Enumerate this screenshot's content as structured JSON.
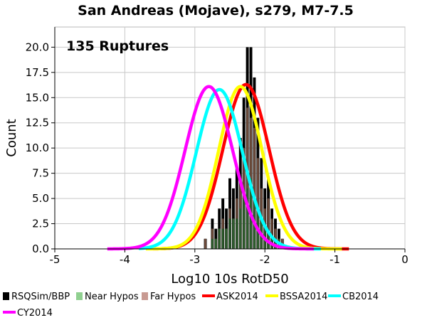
{
  "chart_data": {
    "type": "bar",
    "title": "San Andreas (Mojave), s279, M7-7.5",
    "annotation": "135 Ruptures",
    "xlabel": "Log10 10s RotD50",
    "ylabel": "Count",
    "xlim": [
      -5,
      0
    ],
    "ylim": [
      0,
      22
    ],
    "x_ticks": [
      "-5",
      "-4",
      "-3",
      "-2",
      "-1",
      "0"
    ],
    "y_ticks": [
      "0.0",
      "2.5",
      "5.0",
      "7.5",
      "10.0",
      "12.5",
      "15.0",
      "17.5",
      "20.0"
    ],
    "grid": true,
    "bin_width": 0.05,
    "bins": [
      {
        "x": -2.85,
        "total": 1,
        "near": 0,
        "far": 1
      },
      {
        "x": -2.75,
        "total": 3,
        "near": 1,
        "far": 2
      },
      {
        "x": -2.7,
        "total": 2,
        "near": 1,
        "far": 1
      },
      {
        "x": -2.65,
        "total": 4,
        "near": 2,
        "far": 2
      },
      {
        "x": -2.6,
        "total": 5,
        "near": 2,
        "far": 3
      },
      {
        "x": -2.55,
        "total": 4,
        "near": 2,
        "far": 2
      },
      {
        "x": -2.5,
        "total": 7,
        "near": 3,
        "far": 4
      },
      {
        "x": -2.45,
        "total": 6,
        "near": 3,
        "far": 3
      },
      {
        "x": -2.4,
        "total": 8,
        "near": 3,
        "far": 5
      },
      {
        "x": -2.35,
        "total": 11,
        "near": 4,
        "far": 7
      },
      {
        "x": -2.3,
        "total": 15,
        "near": 5,
        "far": 10
      },
      {
        "x": -2.25,
        "total": 20,
        "near": 6,
        "far": 14
      },
      {
        "x": -2.2,
        "total": 20,
        "near": 7,
        "far": 13
      },
      {
        "x": -2.15,
        "total": 17,
        "near": 5,
        "far": 12
      },
      {
        "x": -2.1,
        "total": 13,
        "near": 4,
        "far": 9
      },
      {
        "x": -2.05,
        "total": 9,
        "near": 3,
        "far": 6
      },
      {
        "x": -2.0,
        "total": 6,
        "near": 2,
        "far": 4
      },
      {
        "x": -1.95,
        "total": 7,
        "near": 2,
        "far": 5
      },
      {
        "x": -1.9,
        "total": 4,
        "near": 1,
        "far": 3
      },
      {
        "x": -1.85,
        "total": 3,
        "near": 1,
        "far": 2
      },
      {
        "x": -1.8,
        "total": 2,
        "near": 1,
        "far": 1
      },
      {
        "x": -1.75,
        "total": 1,
        "near": 0,
        "far": 1
      }
    ],
    "series": [
      {
        "name": "ASK2014",
        "color": "#ff0000",
        "mean": -2.27,
        "sigma": 0.33,
        "peak": 16.3,
        "x_range": [
          -3.6,
          -0.8
        ]
      },
      {
        "name": "BSSA2014",
        "color": "#ffff00",
        "mean": -2.35,
        "sigma": 0.31,
        "peak": 16.1,
        "x_range": [
          -3.7,
          -0.9
        ]
      },
      {
        "name": "CB2014",
        "color": "#00ffff",
        "mean": -2.65,
        "sigma": 0.33,
        "peak": 15.8,
        "x_range": [
          -3.8,
          -1.2
        ]
      },
      {
        "name": "CY2014",
        "color": "#ff00ff",
        "mean": -2.8,
        "sigma": 0.34,
        "peak": 16.1,
        "x_range": [
          -4.25,
          -1.3
        ]
      }
    ],
    "bar_series": [
      {
        "name": "RSQSim/BBP",
        "color": "#000000"
      },
      {
        "name": "Near Hypos",
        "color": "#90d090"
      },
      {
        "name": "Far Hypos",
        "color": "#c89a92"
      }
    ]
  }
}
